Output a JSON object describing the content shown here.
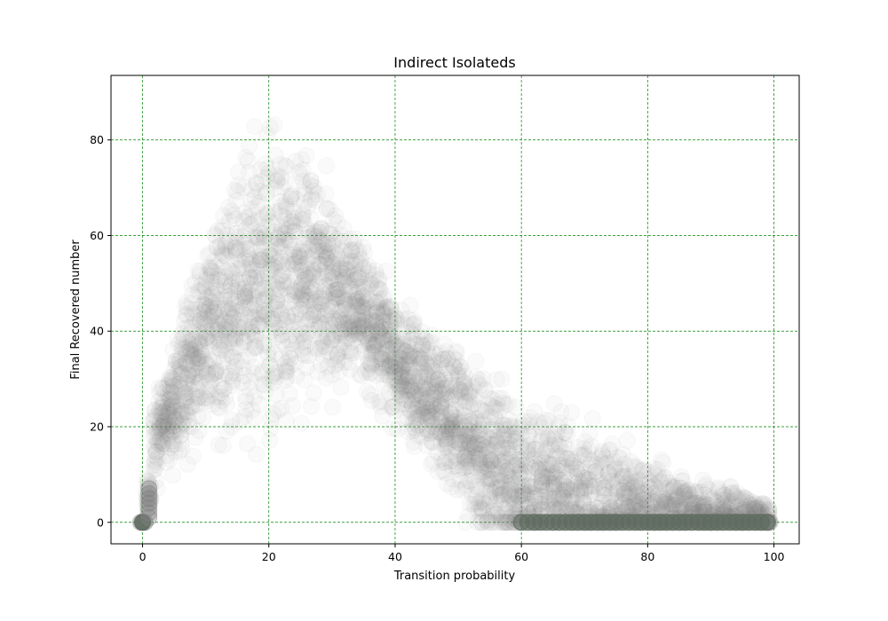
{
  "chart_data": {
    "type": "scatter",
    "title": "Indirect Isolateds",
    "xlabel": "Transition probability",
    "ylabel": "Final Recovered number",
    "xlim": [
      -5,
      104
    ],
    "ylim": [
      -4.5,
      93.5
    ],
    "xticks": [
      0,
      20,
      40,
      60,
      80,
      100
    ],
    "yticks": [
      0,
      20,
      40,
      60,
      80
    ],
    "grid": true,
    "colors": {
      "grid": "#008000",
      "marker": "#808080",
      "marker_dense": "#5e6b5e"
    },
    "marker_opacity": 0.04,
    "series": [
      {
        "name": "",
        "description_points": "band_profile",
        "profile": {
          "x": [
            0,
            1,
            2,
            3,
            5,
            8,
            12,
            16,
            20,
            24,
            28,
            32,
            36,
            40,
            44,
            48,
            52,
            56,
            60,
            64,
            68,
            72,
            76,
            80,
            85,
            90,
            95,
            99
          ],
          "mean": [
            0,
            6,
            15,
            20,
            25,
            33,
            42,
            48,
            50,
            52,
            50,
            47,
            41,
            34,
            28,
            23,
            17,
            11,
            7,
            5,
            3,
            2,
            1.5,
            1,
            0.6,
            0.4,
            0.2,
            0
          ],
          "upper": [
            0,
            10,
            25,
            30,
            38,
            52,
            65,
            76,
            82,
            80,
            74,
            64,
            55,
            47,
            42,
            38,
            33,
            28,
            25,
            24,
            20,
            18,
            15,
            12,
            10,
            8,
            6,
            4
          ]
        }
      }
    ]
  }
}
